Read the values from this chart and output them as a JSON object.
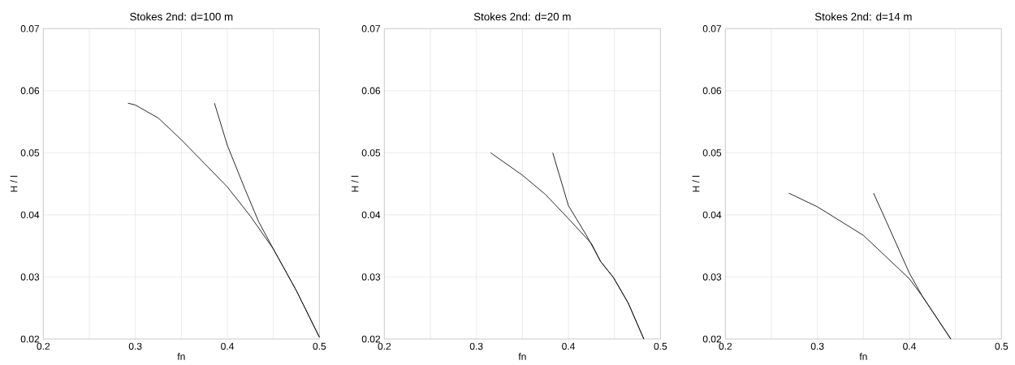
{
  "chart_data": [
    {
      "type": "line",
      "title": "Stokes 2nd:  d=100 m",
      "xlabel": "fn",
      "ylabel": "H / l",
      "xlim": [
        0.2,
        0.5
      ],
      "ylim": [
        0.02,
        0.07
      ],
      "xticks": [
        0.2,
        {
          "value": 0.25,
          "label": null
        },
        0.3,
        {
          "value": 0.35,
          "label": null
        },
        0.4,
        {
          "value": 0.45,
          "label": null
        },
        0.5
      ],
      "yticks": [
        0.02,
        0.03,
        0.04,
        0.05,
        0.06,
        0.07
      ],
      "grid": true,
      "line_style": "solid",
      "series": [
        {
          "color": "#1a1a1a",
          "x": [
            0.292,
            0.3,
            0.325,
            0.35,
            0.375,
            0.4,
            0.425,
            0.45,
            0.475,
            0.5
          ],
          "values": [
            0.058,
            0.0577,
            0.0556,
            0.0521,
            0.0483,
            0.0445,
            0.0398,
            0.0345,
            0.0278,
            0.0203
          ]
        },
        {
          "color": "#1a1a1a",
          "x": [
            0.386,
            0.4,
            0.419,
            0.434,
            0.45,
            0.475,
            0.5
          ],
          "values": [
            0.058,
            0.0512,
            0.0442,
            0.0389,
            0.0345,
            0.0278,
            0.0203
          ]
        }
      ]
    },
    {
      "type": "line",
      "title": "Stokes 2nd:  d=20 m",
      "xlabel": "fn",
      "ylabel": "H / l",
      "xlim": [
        0.2,
        0.5
      ],
      "ylim": [
        0.02,
        0.07
      ],
      "xticks": [
        0.2,
        {
          "value": 0.25,
          "label": null
        },
        0.3,
        {
          "value": 0.35,
          "label": null
        },
        0.4,
        {
          "value": 0.45,
          "label": null
        },
        0.5
      ],
      "yticks": [
        0.02,
        0.03,
        0.04,
        0.05,
        0.06,
        0.07
      ],
      "grid": true,
      "line_style": "solid",
      "series": [
        {
          "color": "#1a1a1a",
          "x": [
            0.3155,
            0.35,
            0.375,
            0.4,
            0.425,
            0.435,
            0.449,
            0.465,
            0.482
          ],
          "values": [
            0.05,
            0.0464,
            0.0433,
            0.0394,
            0.0354,
            0.0325,
            0.0299,
            0.0258,
            0.02
          ]
        },
        {
          "color": "#1a1a1a",
          "x": [
            0.383,
            0.4,
            0.42,
            0.435,
            0.449,
            0.465,
            0.482
          ],
          "values": [
            0.05,
            0.0415,
            0.0366,
            0.0325,
            0.0299,
            0.0258,
            0.02
          ]
        }
      ]
    },
    {
      "type": "line",
      "title": "Stokes 2nd:  d=14 m",
      "xlabel": "fn",
      "ylabel": "H / l",
      "xlim": [
        0.2,
        0.5
      ],
      "ylim": [
        0.02,
        0.07
      ],
      "xticks": [
        0.2,
        {
          "value": 0.25,
          "label": null
        },
        0.3,
        {
          "value": 0.35,
          "label": null
        },
        0.4,
        {
          "value": 0.45,
          "label": null
        },
        0.5
      ],
      "yticks": [
        0.02,
        0.03,
        0.04,
        0.05,
        0.06,
        0.07
      ],
      "grid": true,
      "line_style": "solid",
      "series": [
        {
          "color": "#1a1a1a",
          "x": [
            0.269,
            0.3,
            0.35,
            0.4,
            0.414,
            0.445
          ],
          "values": [
            0.0435,
            0.0413,
            0.0367,
            0.0297,
            0.0269,
            0.02
          ]
        },
        {
          "color": "#1a1a1a",
          "x": [
            0.361,
            0.375,
            0.4,
            0.414,
            0.445
          ],
          "values": [
            0.0435,
            0.0389,
            0.0306,
            0.0269,
            0.02
          ]
        }
      ]
    }
  ]
}
